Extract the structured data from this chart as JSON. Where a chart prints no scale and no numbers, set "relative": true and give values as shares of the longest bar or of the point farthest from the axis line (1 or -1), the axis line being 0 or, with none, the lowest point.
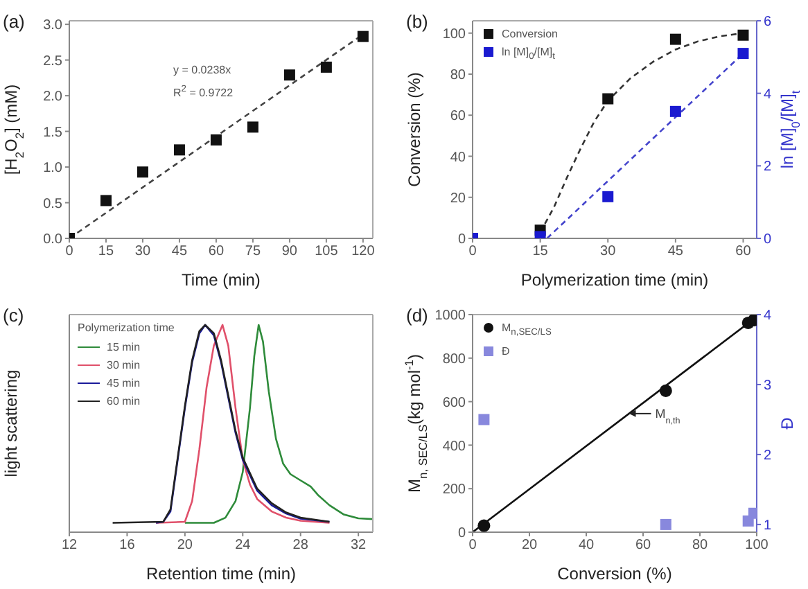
{
  "chart_data": [
    {
      "type": "scatter",
      "title": "(a)",
      "xlabel": "Time (min)",
      "ylabel": "[H$_{2}$O$_{2}$] (mM)",
      "annotations": [
        "y = 0.0238x",
        "R$^{2}$ = 0.9722"
      ],
      "xlim": [
        0,
        124
      ],
      "xticks": [
        0,
        15,
        30,
        45,
        60,
        75,
        90,
        105,
        120
      ],
      "ylim": [
        0,
        3.05
      ],
      "yticks": [
        {
          "value": 0,
          "label": "0.0"
        },
        {
          "value": 0.5,
          "label": "0.5"
        },
        {
          "value": 1,
          "label": "1.0"
        },
        {
          "value": 1.5,
          "label": "1.5"
        },
        {
          "value": 2,
          "label": "2.0"
        },
        {
          "value": 2.5,
          "label": "2.5"
        },
        {
          "value": 3,
          "label": "3.0"
        }
      ],
      "series": [
        {
          "color": "#111111",
          "marker": "square",
          "x": [
            0,
            15,
            30,
            45,
            60,
            75,
            90,
            105,
            120
          ],
          "values": [
            0,
            0.53,
            0.93,
            1.24,
            1.38,
            1.56,
            2.29,
            2.4,
            2.83
          ]
        },
        {
          "type": "line",
          "color": "#444444",
          "marker": "none",
          "line_style": "dashed",
          "x": [
            0,
            120
          ],
          "values": [
            0,
            2.86
          ]
        }
      ]
    },
    {
      "type": "scatter",
      "title": "(b)",
      "xlabel": "Polymerization time (min)",
      "ylabel": "Conversion (%)",
      "y2label": "ln [M]$_{0}$/[M]$_{t}$",
      "legend": "top left",
      "xlim": [
        0,
        63
      ],
      "xticks": [
        0,
        15,
        30,
        45,
        60
      ],
      "ylim": [
        0,
        106
      ],
      "yticks": [
        0,
        20,
        40,
        60,
        80,
        100
      ],
      "y2lim": [
        0,
        6
      ],
      "y2ticks": [
        0,
        2,
        4,
        6
      ],
      "series": [
        {
          "name": "Conversion",
          "color": "#111111",
          "marker": "square",
          "x": [
            15,
            30,
            45,
            60
          ],
          "values": [
            4,
            68,
            97,
            99
          ]
        },
        {
          "name": "ln [M]$_{0}$/[M]$_{t}$",
          "color": "#1a1ad0",
          "marker": "square",
          "axis": "y2",
          "x": [
            0,
            15,
            30,
            45,
            60
          ],
          "values": [
            0,
            0.05,
            1.15,
            3.5,
            5.1
          ]
        },
        {
          "type": "line",
          "color": "#333333",
          "marker": "none",
          "line_style": "dashed",
          "x": [
            15,
            18,
            21,
            24,
            27,
            30,
            35,
            40,
            45,
            50,
            55,
            60
          ],
          "values": [
            3,
            15,
            30,
            44,
            57,
            67,
            78,
            86,
            92,
            96,
            98.5,
            100
          ]
        },
        {
          "type": "line",
          "color": "#4444cc",
          "marker": "none",
          "line_style": "dashed",
          "axis": "y2",
          "x": [
            16.5,
            60
          ],
          "values": [
            0,
            5.1
          ]
        }
      ]
    },
    {
      "type": "line",
      "title": "(c)",
      "xlabel": "Retention time (min)",
      "ylabel": "light scattering",
      "legend_title": "Polymerization time",
      "legend": "top left",
      "relative": true,
      "tick_labels": "x",
      "xlim": [
        12,
        33
      ],
      "xticks": [
        12,
        16,
        20,
        24,
        28,
        32
      ],
      "series": [
        {
          "name": "15 min",
          "color": "#2e8b3a",
          "x": [
            20,
            22,
            22.8,
            23.5,
            24,
            24.5,
            24.8,
            25.1,
            25.4,
            25.8,
            26.3,
            26.8,
            27.3,
            28,
            28.7,
            29.2,
            30,
            31,
            32,
            33
          ],
          "values": [
            0.045,
            0.045,
            0.07,
            0.15,
            0.29,
            0.6,
            0.85,
            1,
            0.92,
            0.68,
            0.45,
            0.33,
            0.28,
            0.25,
            0.22,
            0.18,
            0.13,
            0.085,
            0.067,
            0.063
          ]
        },
        {
          "name": "30 min",
          "color": "#e0506a",
          "x": [
            18,
            20,
            20.5,
            21,
            21.5,
            22,
            22.6,
            23,
            23.5,
            24,
            24.5,
            25,
            26,
            27,
            28,
            30
          ],
          "values": [
            0.045,
            0.05,
            0.15,
            0.4,
            0.7,
            0.9,
            1,
            0.9,
            0.6,
            0.35,
            0.23,
            0.16,
            0.1,
            0.07,
            0.055,
            0.045
          ]
        },
        {
          "name": "45 min",
          "color": "#1a1a9a",
          "x": [
            18,
            18.5,
            19,
            19.5,
            20,
            20.5,
            21,
            21.4,
            22,
            22.5,
            23,
            23.5,
            24,
            25,
            26,
            27,
            28,
            30
          ],
          "values": [
            0.045,
            0.05,
            0.1,
            0.35,
            0.6,
            0.82,
            0.96,
            1,
            0.95,
            0.82,
            0.65,
            0.48,
            0.35,
            0.2,
            0.13,
            0.09,
            0.065,
            0.05
          ]
        },
        {
          "name": "60 min",
          "color": "#222222",
          "x": [
            15,
            18.5,
            19,
            19.5,
            20,
            20.5,
            21,
            21.4,
            22,
            22.5,
            23,
            23.5,
            24,
            25,
            26,
            27,
            28,
            30
          ],
          "values": [
            0.045,
            0.05,
            0.11,
            0.36,
            0.61,
            0.83,
            0.97,
            1,
            0.96,
            0.83,
            0.66,
            0.49,
            0.36,
            0.21,
            0.14,
            0.095,
            0.07,
            0.05
          ]
        }
      ]
    },
    {
      "type": "scatter",
      "title": "(d)",
      "xlabel": "Conversion (%)",
      "ylabel": "M$_{n, SEC/LS}$(kg mol$^{-1}$)",
      "y2label": "Đ",
      "legend": "top left",
      "annotations": [
        {
          "text": "M$_{n,th}$",
          "x": 55,
          "y": 545
        }
      ],
      "xlim": [
        0,
        100
      ],
      "xticks": [
        0,
        20,
        40,
        60,
        80,
        100
      ],
      "ylim": [
        0,
        1000
      ],
      "yticks": [
        0,
        200,
        400,
        600,
        800,
        1000
      ],
      "y2lim": [
        0.89,
        4
      ],
      "y2ticks": [
        1,
        2,
        3,
        4
      ],
      "series": [
        {
          "name": "M$_{n,SEC/LS}$",
          "color": "#111111",
          "marker": "circle",
          "x": [
            4,
            68,
            97,
            99
          ],
          "values": [
            30,
            650,
            962,
            975
          ]
        },
        {
          "name": "Đ",
          "color": "#8888dd",
          "marker": "square",
          "axis": "y2",
          "x": [
            4,
            68,
            97,
            99
          ],
          "values": [
            2.5,
            1,
            1.05,
            1.16
          ]
        },
        {
          "type": "line",
          "color": "#111111",
          "marker": "none",
          "line_style": "solid",
          "x": [
            0,
            100
          ],
          "values": [
            0,
            990
          ]
        }
      ]
    }
  ]
}
